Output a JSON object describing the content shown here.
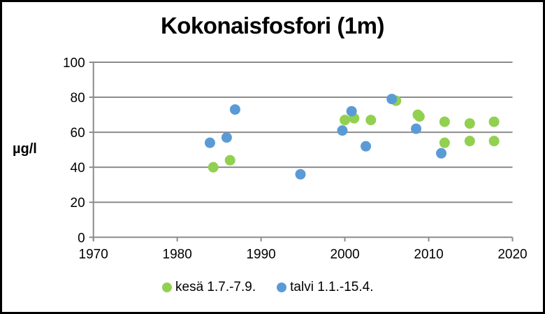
{
  "chart_data": {
    "type": "scatter",
    "title": "Kokonaisfosfori (1m)",
    "xlabel": "",
    "ylabel": "µg/l",
    "xlim": [
      1970,
      2020
    ],
    "ylim": [
      0,
      100
    ],
    "x_ticks": [
      1970,
      1980,
      1990,
      2000,
      2010,
      2020
    ],
    "y_ticks": [
      0,
      20,
      40,
      60,
      80,
      100
    ],
    "grid": "horizontal",
    "legend_position": "bottom",
    "series": [
      {
        "name": "kesä 1.7.-7.9.",
        "color": "#92D050",
        "points": [
          {
            "x": 1984.3,
            "y": 40
          },
          {
            "x": 1986.3,
            "y": 44
          },
          {
            "x": 2000.0,
            "y": 67
          },
          {
            "x": 2001.1,
            "y": 68
          },
          {
            "x": 2003.1,
            "y": 67
          },
          {
            "x": 2006.1,
            "y": 78
          },
          {
            "x": 2008.7,
            "y": 70
          },
          {
            "x": 2008.9,
            "y": 69
          },
          {
            "x": 2011.9,
            "y": 66
          },
          {
            "x": 2011.9,
            "y": 54
          },
          {
            "x": 2014.9,
            "y": 65
          },
          {
            "x": 2014.9,
            "y": 55
          },
          {
            "x": 2017.8,
            "y": 66
          },
          {
            "x": 2017.8,
            "y": 55
          }
        ]
      },
      {
        "name": "talvi 1.1.-15.4.",
        "color": "#5B9BD5",
        "points": [
          {
            "x": 1983.9,
            "y": 54
          },
          {
            "x": 1985.9,
            "y": 57
          },
          {
            "x": 1986.9,
            "y": 73
          },
          {
            "x": 1994.7,
            "y": 36
          },
          {
            "x": 1999.7,
            "y": 61
          },
          {
            "x": 2000.8,
            "y": 72
          },
          {
            "x": 2002.5,
            "y": 52
          },
          {
            "x": 2005.6,
            "y": 79
          },
          {
            "x": 2008.5,
            "y": 62
          },
          {
            "x": 2011.5,
            "y": 48
          }
        ]
      }
    ]
  },
  "legend": {
    "items": [
      {
        "label": "kesä 1.7.-7.9.",
        "color": "#92D050"
      },
      {
        "label": "talvi 1.1.-15.4.",
        "color": "#5B9BD5"
      }
    ]
  }
}
